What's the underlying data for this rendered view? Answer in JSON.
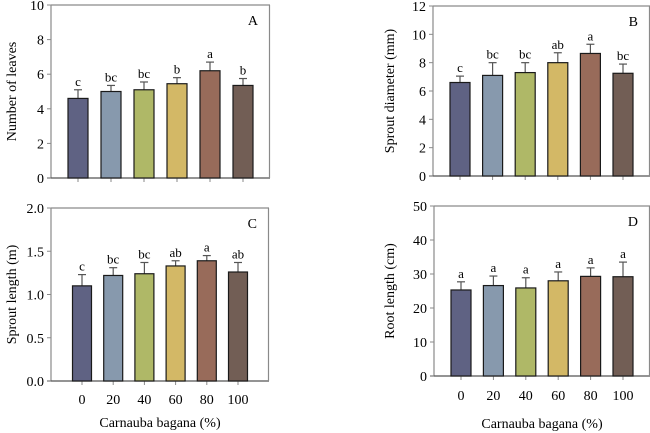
{
  "chart_data": [
    {
      "id": "A",
      "type": "bar",
      "panel_label": "A",
      "title": "",
      "xlabel": "",
      "ylabel": "Number of leaves",
      "categories": [
        "0",
        "20",
        "40",
        "60",
        "80",
        "100"
      ],
      "show_category_labels": false,
      "values": [
        4.6,
        5.0,
        5.1,
        5.45,
        6.2,
        5.35
      ],
      "error": [
        0.5,
        0.35,
        0.45,
        0.35,
        0.5,
        0.4
      ],
      "letters": [
        "c",
        "bc",
        "bc",
        "b",
        "a",
        "b"
      ],
      "ylim": [
        0,
        10
      ],
      "yticks": [
        0,
        2,
        4,
        6,
        8,
        10
      ],
      "ytick_labels": [
        "0",
        "2",
        "4",
        "6",
        "8",
        "10"
      ],
      "grid": false
    },
    {
      "id": "B",
      "type": "bar",
      "panel_label": "B",
      "title": "",
      "xlabel": "",
      "ylabel": "Sprout diameter (mm)",
      "categories": [
        "0",
        "20",
        "40",
        "60",
        "80",
        "100"
      ],
      "show_category_labels": false,
      "values": [
        6.6,
        7.1,
        7.3,
        8.0,
        8.65,
        7.25
      ],
      "error": [
        0.45,
        0.9,
        0.7,
        0.7,
        0.65,
        0.65
      ],
      "letters": [
        "c",
        "bc",
        "bc",
        "ab",
        "a",
        "bc"
      ],
      "ylim": [
        0,
        12
      ],
      "yticks": [
        0,
        2,
        4,
        6,
        8,
        10,
        12
      ],
      "ytick_labels": [
        "0",
        "2",
        "4",
        "6",
        "8",
        "10",
        "12"
      ],
      "grid": false
    },
    {
      "id": "C",
      "type": "bar",
      "panel_label": "C",
      "title": "",
      "xlabel": "Carnauba bagana (%)",
      "ylabel": "Sprout length (m)",
      "categories": [
        "0",
        "20",
        "40",
        "60",
        "80",
        "100"
      ],
      "show_category_labels": true,
      "values": [
        1.1,
        1.22,
        1.24,
        1.33,
        1.39,
        1.26
      ],
      "error": [
        0.13,
        0.09,
        0.13,
        0.06,
        0.06,
        0.11
      ],
      "letters": [
        "c",
        "bc",
        "bc",
        "ab",
        "a",
        "ab"
      ],
      "ylim": [
        0,
        2.0
      ],
      "yticks": [
        0,
        0.5,
        1.0,
        1.5,
        2.0
      ],
      "ytick_labels": [
        "0.0",
        "0.5",
        "1.0",
        "1.5",
        "2.0"
      ],
      "grid": false
    },
    {
      "id": "D",
      "type": "bar",
      "panel_label": "D",
      "title": "",
      "xlabel": "Carnauba bagana (%)",
      "ylabel": "Root length (cm)",
      "categories": [
        "0",
        "20",
        "40",
        "60",
        "80",
        "100"
      ],
      "show_category_labels": true,
      "values": [
        25.3,
        26.6,
        25.9,
        28.0,
        29.3,
        29.2
      ],
      "error": [
        2.4,
        2.8,
        3.0,
        2.6,
        2.5,
        4.3
      ],
      "letters": [
        "a",
        "a",
        "a",
        "a",
        "a",
        "a"
      ],
      "ylim": [
        0,
        50
      ],
      "yticks": [
        0,
        10,
        20,
        30,
        40,
        50
      ],
      "ytick_labels": [
        "0",
        "10",
        "20",
        "30",
        "40",
        "50"
      ],
      "grid": false
    }
  ],
  "bar_colors": [
    "#5f6283",
    "#8799ad",
    "#afb867",
    "#d3b866",
    "#986b5a",
    "#725e55"
  ],
  "colors": {
    "axis": "#8a8a8a",
    "bar_outline": "#1a1a1a",
    "error_bar": "#555555",
    "text": "#000000",
    "background": "#ffffff"
  }
}
